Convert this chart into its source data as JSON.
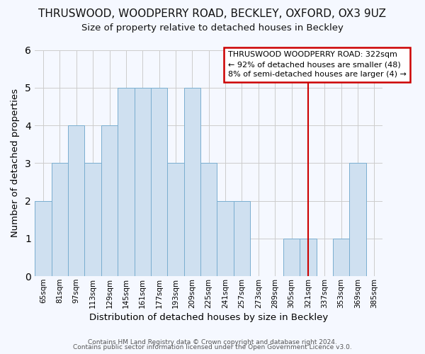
{
  "title": "THRUSWOOD, WOODPERRY ROAD, BECKLEY, OXFORD, OX3 9UZ",
  "subtitle": "Size of property relative to detached houses in Beckley",
  "xlabel": "Distribution of detached houses by size in Beckley",
  "ylabel": "Number of detached properties",
  "categories": [
    "65sqm",
    "81sqm",
    "97sqm",
    "113sqm",
    "129sqm",
    "145sqm",
    "161sqm",
    "177sqm",
    "193sqm",
    "209sqm",
    "225sqm",
    "241sqm",
    "257sqm",
    "273sqm",
    "289sqm",
    "305sqm",
    "321sqm",
    "337sqm",
    "353sqm",
    "369sqm",
    "385sqm"
  ],
  "values": [
    2,
    3,
    4,
    3,
    4,
    5,
    5,
    5,
    3,
    5,
    3,
    2,
    2,
    0,
    0,
    1,
    1,
    0,
    1,
    3,
    0
  ],
  "bar_color": "#cfe0f0",
  "bar_edge_color": "#7aaed0",
  "grid_color": "#cccccc",
  "background_color": "#f5f8ff",
  "marker_line_color": "#cc0000",
  "legend_text_line1": "THRUSWOOD WOODPERRY ROAD: 322sqm",
  "legend_text_line2": "← 92% of detached houses are smaller (48)",
  "legend_text_line3": "8% of semi-detached houses are larger (4) →",
  "legend_box_edge_color": "#cc0000",
  "footer_line1": "Contains HM Land Registry data © Crown copyright and database right 2024.",
  "footer_line2": "Contains public sector information licensed under the Open Government Licence v3.0.",
  "ylim": [
    0,
    6
  ],
  "yticks": [
    0,
    1,
    2,
    3,
    4,
    5,
    6
  ],
  "title_fontsize": 11,
  "subtitle_fontsize": 9.5
}
